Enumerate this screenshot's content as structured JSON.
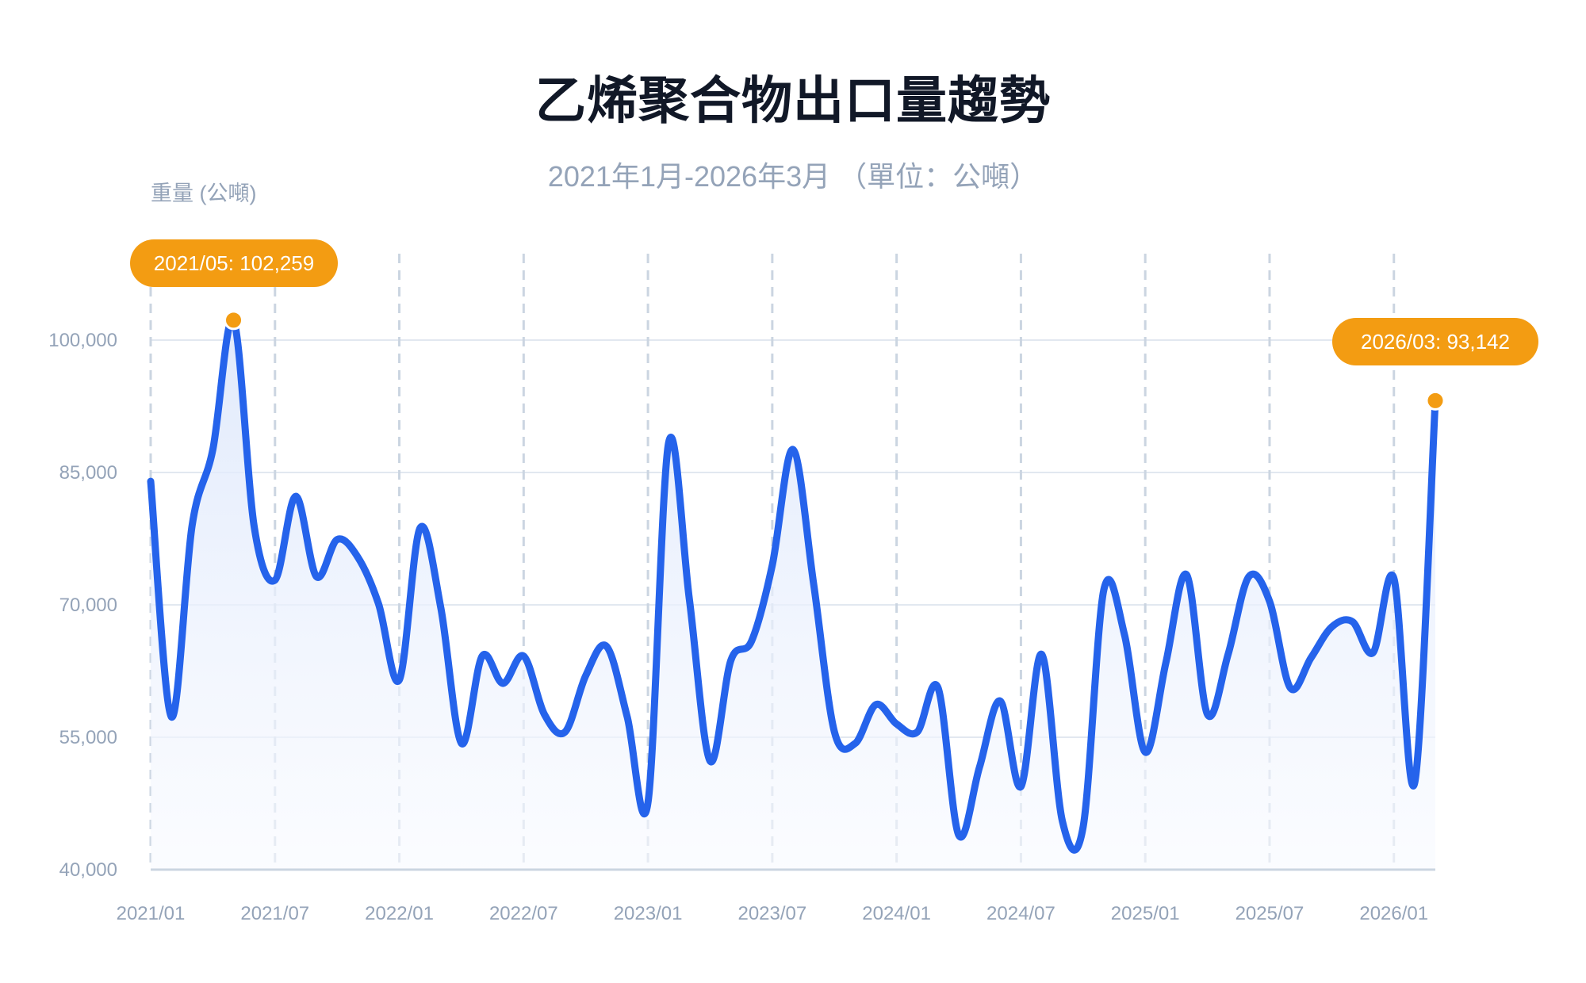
{
  "header": {
    "title": "乙烯聚合物出口量趨勢",
    "subtitle": "2021年1月-2026年3月 （單位：公噸）",
    "y_axis_label": "重量 (公噸)"
  },
  "annotations": {
    "max": {
      "label": "2021/05: 102,259",
      "index": 4
    },
    "last": {
      "label": "2026/03: 93,142",
      "index": 62
    }
  },
  "colors": {
    "line": "#2563eb",
    "area_top": "#dbe6fb",
    "highlight": "#f39c12",
    "grid": "#e2e8f0",
    "axis_text": "#94a3b8",
    "title": "#111827"
  },
  "chart_data": {
    "type": "line",
    "title": "乙烯聚合物出口量趨勢",
    "subtitle": "2021年1月-2026年3月 （單位：公噸）",
    "xlabel": "",
    "ylabel": "重量 (公噸)",
    "ylim": [
      40000,
      100000
    ],
    "yticks": [
      40000,
      55000,
      70000,
      85000,
      100000
    ],
    "ytick_labels": [
      "40,000",
      "55,000",
      "70,000",
      "85,000",
      "100,000"
    ],
    "xtick_labels": [
      "2021/01",
      "2021/07",
      "2022/01",
      "2022/07",
      "2023/01",
      "2023/07",
      "2024/01",
      "2024/07",
      "2025/01",
      "2025/07",
      "2026/01"
    ],
    "xtick_indices": [
      0,
      6,
      12,
      18,
      24,
      30,
      36,
      42,
      48,
      54,
      60
    ],
    "grid": true,
    "legend": null,
    "x": [
      "2021/01",
      "2021/02",
      "2021/03",
      "2021/04",
      "2021/05",
      "2021/06",
      "2021/07",
      "2021/08",
      "2021/09",
      "2021/10",
      "2021/11",
      "2021/12",
      "2022/01",
      "2022/02",
      "2022/03",
      "2022/04",
      "2022/05",
      "2022/06",
      "2022/07",
      "2022/08",
      "2022/09",
      "2022/10",
      "2022/11",
      "2022/12",
      "2023/01",
      "2023/02",
      "2023/03",
      "2023/04",
      "2023/05",
      "2023/06",
      "2023/07",
      "2023/08",
      "2023/09",
      "2023/10",
      "2023/11",
      "2023/12",
      "2024/01",
      "2024/02",
      "2024/03",
      "2024/04",
      "2024/05",
      "2024/06",
      "2024/07",
      "2024/08",
      "2024/09",
      "2024/10",
      "2024/11",
      "2024/12",
      "2025/01",
      "2025/02",
      "2025/03",
      "2025/04",
      "2025/05",
      "2025/06",
      "2025/07",
      "2025/08",
      "2025/09",
      "2025/10",
      "2025/11",
      "2025/12",
      "2026/01",
      "2026/02",
      "2026/03"
    ],
    "series": [
      {
        "name": "出口量",
        "values": [
          84000,
          57300,
          79000,
          87600,
          102259,
          78800,
          72800,
          82300,
          73200,
          77400,
          75400,
          70100,
          61500,
          78700,
          69700,
          54300,
          64200,
          61100,
          64200,
          57600,
          55600,
          62000,
          65300,
          57300,
          47600,
          88400,
          70600,
          52300,
          63700,
          65900,
          74500,
          87600,
          72300,
          55600,
          54300,
          58700,
          56500,
          55600,
          60600,
          43900,
          51600,
          59100,
          49400,
          64400,
          45500,
          44800,
          71700,
          66600,
          53300,
          63500,
          73400,
          57600,
          64400,
          73200,
          70400,
          60600,
          64000,
          67500,
          68100,
          64600,
          73000,
          49800,
          93142
        ]
      }
    ]
  }
}
